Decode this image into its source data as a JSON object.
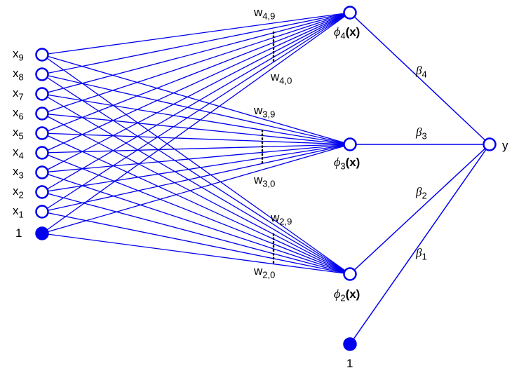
{
  "accent_color": "#0000ee",
  "inputs": [
    {
      "base": "x",
      "sub": "9"
    },
    {
      "base": "x",
      "sub": "8"
    },
    {
      "base": "x",
      "sub": "7"
    },
    {
      "base": "x",
      "sub": "6"
    },
    {
      "base": "x",
      "sub": "5"
    },
    {
      "base": "x",
      "sub": "4"
    },
    {
      "base": "x",
      "sub": "3"
    },
    {
      "base": "x",
      "sub": "2"
    },
    {
      "base": "x",
      "sub": "1"
    }
  ],
  "input_bias_label": "1",
  "hidden": [
    {
      "symbol": "ϕ",
      "sub": "4",
      "arg": "(x)",
      "w_top_base": "w",
      "w_top_sub": "4,9",
      "w_bot_base": "w",
      "w_bot_sub": "4,0",
      "beta_symbol": "β",
      "beta_sub": "4"
    },
    {
      "symbol": "ϕ",
      "sub": "3",
      "arg": "(x)",
      "w_top_base": "w",
      "w_top_sub": "3,9",
      "w_bot_base": "w",
      "w_bot_sub": "3,0",
      "beta_symbol": "β",
      "beta_sub": "3"
    },
    {
      "symbol": "ϕ",
      "sub": "2",
      "arg": "(x)",
      "w_top_base": "w",
      "w_top_sub": "2,9",
      "w_bot_base": "w",
      "w_bot_sub": "2,0",
      "beta_symbol": "β",
      "beta_sub": "2"
    }
  ],
  "output_bias": {
    "beta_symbol": "β",
    "beta_sub": "1",
    "label": "1"
  },
  "output_label": "y"
}
